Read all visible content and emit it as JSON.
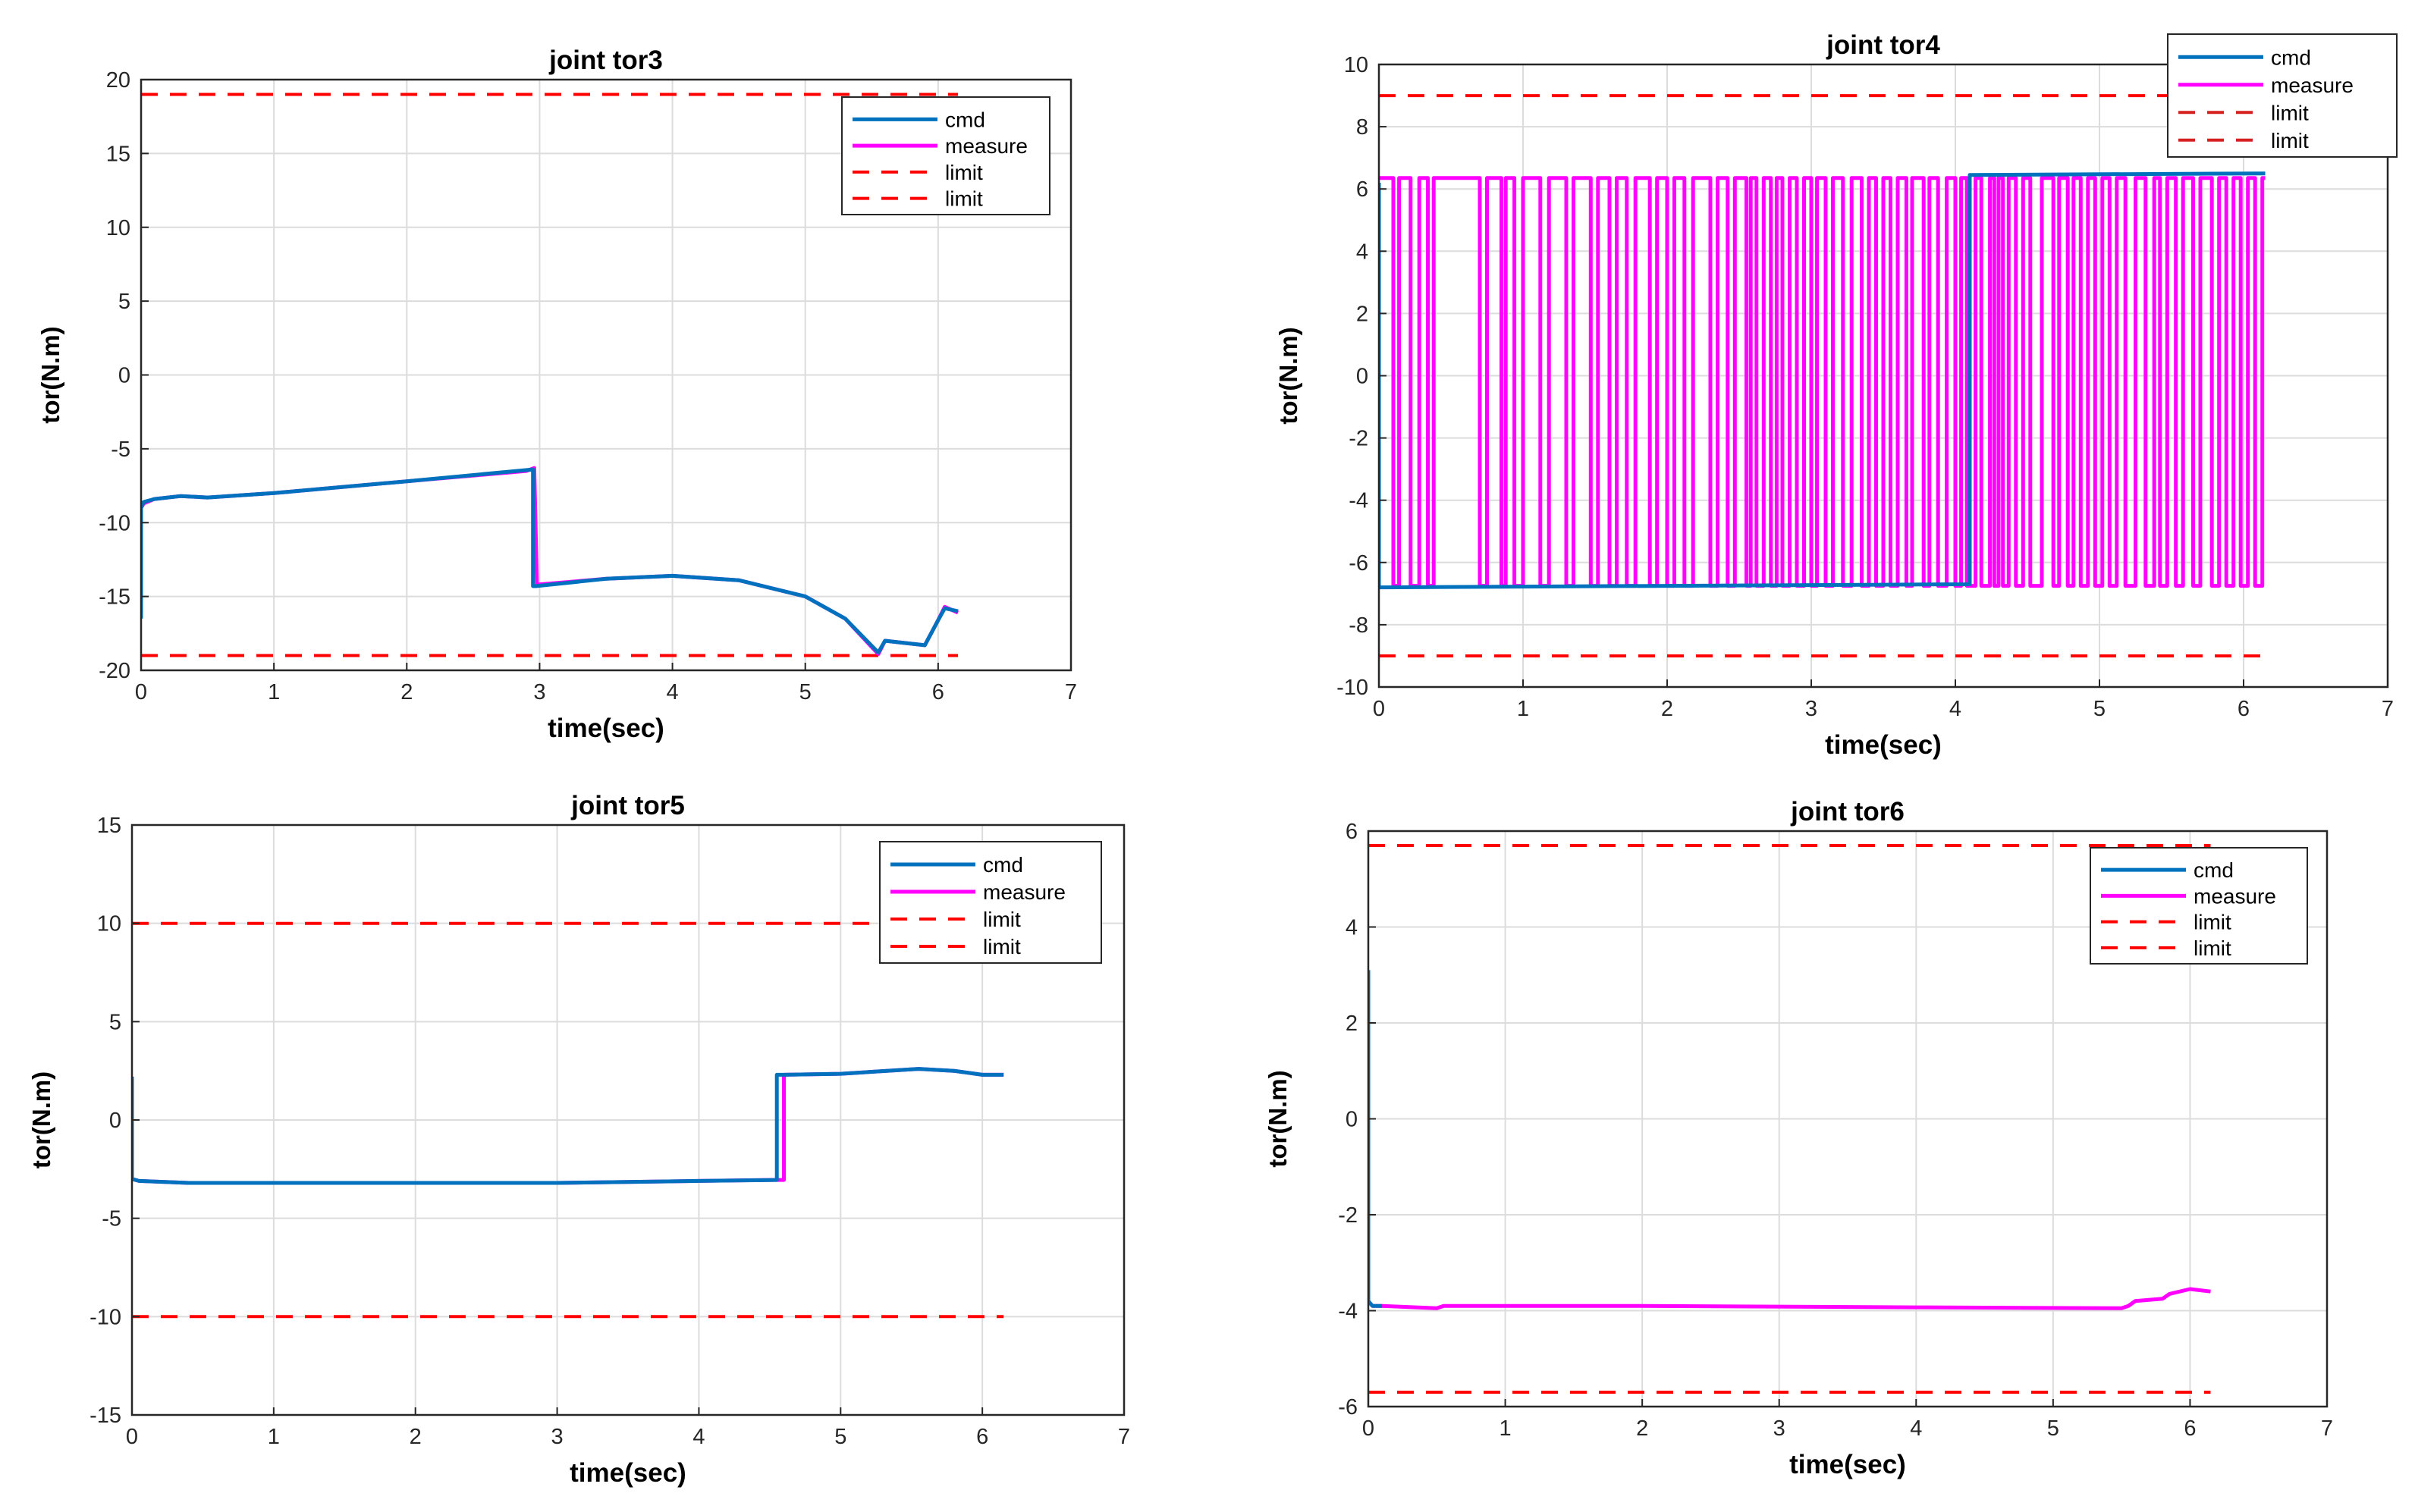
{
  "colors": {
    "cmd": "#0072BD",
    "measure": "#FF00FF",
    "limit": "#FF0000",
    "limit_dark": "#D62020"
  },
  "chart_data": [
    {
      "id": "tor3",
      "type": "line",
      "title": "joint tor3",
      "xlabel": "time(sec)",
      "ylabel": "tor(N.m)",
      "xlim": [
        0,
        7
      ],
      "ylim": [
        -20,
        20
      ],
      "xticks": [
        0,
        1,
        2,
        3,
        4,
        5,
        6,
        7
      ],
      "yticks": [
        20,
        15,
        10,
        5,
        0,
        -5,
        -10,
        -15,
        -20
      ],
      "legend": {
        "placement": "top-right",
        "entries": [
          "cmd",
          "measure",
          "limit",
          "limit"
        ]
      },
      "series": [
        {
          "name": "cmd",
          "x": [
            0,
            0,
            0.02,
            0.1,
            0.3,
            0.5,
            1,
            2,
            2.95,
            2.95,
            2.97,
            3.5,
            4,
            4.5,
            5,
            5.3,
            5.55,
            5.6,
            5.7,
            5.9,
            6,
            6.05,
            6.15
          ],
          "y": [
            -16.5,
            -9,
            -8.6,
            -8.4,
            -8.2,
            -8.3,
            -8,
            -7.2,
            -6.4,
            -14.3,
            -14.3,
            -13.8,
            -13.6,
            -13.9,
            -15,
            -16.5,
            -18.8,
            -18,
            -18.1,
            -18.3,
            -16.6,
            -15.8,
            -16
          ],
          "color": "#0072BD"
        },
        {
          "name": "measure",
          "x": [
            0,
            0.02,
            0.1,
            0.3,
            0.5,
            1,
            2,
            2.9,
            2.96,
            2.98,
            3.5,
            4,
            4.5,
            5,
            5.3,
            5.55,
            5.6,
            5.7,
            5.9,
            6,
            6.05,
            6.15
          ],
          "y": [
            -9,
            -8.7,
            -8.4,
            -8.2,
            -8.3,
            -8,
            -7.2,
            -6.5,
            -6.3,
            -14.2,
            -13.8,
            -13.6,
            -13.9,
            -15,
            -16.5,
            -18.9,
            -18,
            -18.1,
            -18.3,
            -16.6,
            -15.7,
            -16.1
          ],
          "color": "#FF00FF"
        },
        {
          "name": "limit",
          "x": [
            0,
            6.15
          ],
          "y": [
            19,
            19
          ],
          "color": "#FF0000"
        },
        {
          "name": "limit",
          "x": [
            0,
            6.15
          ],
          "y": [
            -19,
            -19
          ],
          "color": "#FF0000"
        }
      ]
    },
    {
      "id": "tor4",
      "type": "line",
      "title": "joint tor4",
      "xlabel": "time(sec)",
      "ylabel": "tor(N.m)",
      "xlim": [
        0,
        7
      ],
      "ylim": [
        -10,
        10
      ],
      "xticks": [
        0,
        1,
        2,
        3,
        4,
        5,
        6,
        7
      ],
      "yticks": [
        10,
        8,
        6,
        4,
        2,
        0,
        -2,
        -4,
        -6,
        -8,
        -10
      ],
      "legend": {
        "placement": "outside top-right",
        "entries": [
          "cmd",
          "measure",
          "limit",
          "limit"
        ]
      },
      "series": [
        {
          "name": "cmd",
          "x": [
            0,
            0,
            0.02,
            4.1,
            4.1,
            6.15
          ],
          "y": [
            6.2,
            -6.8,
            -6.8,
            -6.7,
            6.45,
            6.5
          ],
          "color": "#0072BD"
        },
        {
          "name": "measure",
          "square_wave": true,
          "high": 6.35,
          "low": -6.75,
          "switch_times": [
            0.1,
            0.14,
            0.22,
            0.28,
            0.34,
            0.38,
            0.7,
            0.75,
            0.85,
            0.88,
            0.94,
            1.0,
            1.12,
            1.18,
            1.3,
            1.35,
            1.47,
            1.52,
            1.6,
            1.65,
            1.72,
            1.78,
            1.88,
            1.93,
            2.0,
            2.05,
            2.12,
            2.18,
            2.3,
            2.35,
            2.42,
            2.47,
            2.55,
            2.58,
            2.62,
            2.67,
            2.72,
            2.76,
            2.8,
            2.85,
            2.9,
            2.95,
            3.0,
            3.04,
            3.1,
            3.15,
            3.22,
            3.28,
            3.35,
            3.4,
            3.45,
            3.5,
            3.55,
            3.6,
            3.66,
            3.7,
            3.78,
            3.82,
            3.88,
            3.94,
            4.0,
            4.04,
            4.08,
            4.14,
            4.18,
            4.24,
            4.27,
            4.3,
            4.33,
            4.37,
            4.42,
            4.47,
            4.52,
            4.6,
            4.68,
            4.72,
            4.78,
            4.82,
            4.87,
            4.92,
            4.97,
            5.02,
            5.07,
            5.12,
            5.18,
            5.25,
            5.32,
            5.38,
            5.42,
            5.47,
            5.53,
            5.58,
            5.65,
            5.7,
            5.78,
            5.83,
            5.88,
            5.93,
            5.98,
            6.03,
            6.08,
            6.13
          ],
          "end": 6.15,
          "color": "#FF00FF"
        },
        {
          "name": "limit",
          "x": [
            0,
            6.15
          ],
          "y": [
            9,
            9
          ],
          "color": "#FF0000"
        },
        {
          "name": "limit",
          "x": [
            0,
            6.15
          ],
          "y": [
            -9,
            -9
          ],
          "color": "#FF0000"
        }
      ]
    },
    {
      "id": "tor5",
      "type": "line",
      "title": "joint tor5",
      "xlabel": "time(sec)",
      "ylabel": "tor(N.m)",
      "xlim": [
        0,
        7
      ],
      "ylim": [
        -15,
        15
      ],
      "xticks": [
        0,
        1,
        2,
        3,
        4,
        5,
        6,
        7
      ],
      "yticks": [
        15,
        10,
        5,
        0,
        -5,
        -10,
        -15
      ],
      "legend": {
        "placement": "top-right",
        "entries": [
          "cmd",
          "measure",
          "limit",
          "limit"
        ]
      },
      "series": [
        {
          "name": "cmd",
          "x": [
            0,
            0,
            0.05,
            0.4,
            2,
            3,
            4,
            4.55,
            4.55,
            4.6,
            5,
            5.55,
            5.8,
            6,
            6.15
          ],
          "y": [
            2.2,
            -3,
            -3.1,
            -3.2,
            -3.2,
            -3.2,
            -3.1,
            -3.05,
            2.3,
            2.3,
            2.35,
            2.6,
            2.5,
            2.3,
            2.3
          ],
          "color": "#0072BD"
        },
        {
          "name": "measure",
          "x": [
            0,
            0.05,
            0.4,
            2,
            3,
            4,
            4.5,
            4.6,
            4.6,
            5,
            5.55,
            5.8,
            6,
            6.15
          ],
          "y": [
            -3,
            -3.1,
            -3.2,
            -3.2,
            -3.2,
            -3.1,
            -3.05,
            -3.05,
            2.3,
            2.35,
            2.6,
            2.5,
            2.3,
            2.3
          ],
          "color": "#FF00FF"
        },
        {
          "name": "limit",
          "x": [
            0,
            6.15
          ],
          "y": [
            10,
            10
          ],
          "color": "#FF0000"
        },
        {
          "name": "limit",
          "x": [
            0,
            6.15
          ],
          "y": [
            -10,
            -10
          ],
          "color": "#FF0000"
        }
      ]
    },
    {
      "id": "tor6",
      "type": "line",
      "title": "joint tor6",
      "xlabel": "time(sec)",
      "ylabel": "tor(N.m)",
      "xlim": [
        0,
        7
      ],
      "ylim": [
        -6,
        6
      ],
      "xticks": [
        0,
        1,
        2,
        3,
        4,
        5,
        6,
        7
      ],
      "yticks": [
        6,
        4,
        2,
        0,
        -2,
        -4,
        -6
      ],
      "legend": {
        "placement": "top-right",
        "entries": [
          "cmd",
          "measure",
          "limit",
          "limit"
        ]
      },
      "series": [
        {
          "name": "cmd",
          "x": [
            0,
            0,
            0.03,
            0.1
          ],
          "y": [
            3.1,
            -3.8,
            -3.9,
            -3.9
          ],
          "color": "#0072BD"
        },
        {
          "name": "measure",
          "x": [
            0,
            0.03,
            0.1,
            0.5,
            0.55,
            2,
            4,
            5.5,
            5.55,
            5.6,
            5.8,
            5.85,
            6,
            6.15
          ],
          "y": [
            -3.8,
            -3.9,
            -3.9,
            -3.95,
            -3.9,
            -3.9,
            -3.93,
            -3.95,
            -3.9,
            -3.8,
            -3.75,
            -3.65,
            -3.55,
            -3.6
          ],
          "color": "#FF00FF"
        },
        {
          "name": "limit",
          "x": [
            0,
            6.15
          ],
          "y": [
            5.7,
            5.7
          ],
          "color": "#FF0000"
        },
        {
          "name": "limit",
          "x": [
            0,
            6.15
          ],
          "y": [
            -5.7,
            -5.7
          ],
          "color": "#FF0000"
        }
      ]
    }
  ]
}
